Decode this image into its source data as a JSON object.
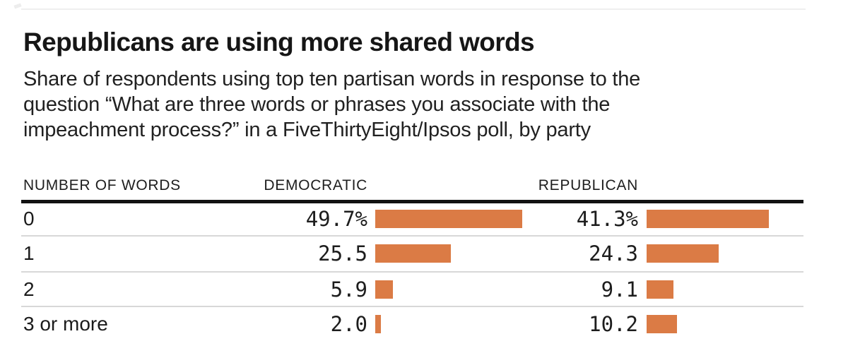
{
  "header": {
    "title": "Republicans are using more shared words",
    "subtitle_lines": [
      "Share of respondents using top ten partisan words in response to the",
      "question “What are three words or phrases you associate with the",
      "impeachment process?” in a FiveThirtyEight/Ipsos poll, by party"
    ],
    "subtitle_full": "Share of respondents using top ten partisan words in response to the question “What are three words or phrases you associate with the impeachment process?” in a FiveThirtyEight/Ipsos poll, by party"
  },
  "chart_data": {
    "type": "bar",
    "title": "Republicans are using more shared words",
    "category_axis_label": "NUMBER OF WORDS",
    "categories": [
      "0",
      "1",
      "2",
      "3 or more"
    ],
    "series": [
      {
        "name": "DEMOCRATIC",
        "values": [
          49.7,
          25.5,
          5.9,
          2.0
        ]
      },
      {
        "name": "REPUBLICAN",
        "values": [
          41.3,
          24.3,
          9.1,
          10.2
        ]
      }
    ],
    "columns": [
      "NUMBER OF WORDS",
      "DEMOCRATIC",
      "REPUBLICAN"
    ],
    "unit": "percent",
    "bar_color": "#db7b45",
    "grid": false,
    "legend_position": "column-headers",
    "rows": [
      {
        "label": "0",
        "democratic": 49.7,
        "democratic_label": "49.7%",
        "republican": 41.3,
        "republican_label": "41.3%"
      },
      {
        "label": "1",
        "democratic": 25.5,
        "democratic_label": "25.5",
        "republican": 24.3,
        "republican_label": "24.3"
      },
      {
        "label": "2",
        "democratic": 5.9,
        "democratic_label": "5.9",
        "republican": 9.1,
        "republican_label": "9.1"
      },
      {
        "label": "3 or more",
        "democratic": 2.0,
        "democratic_label": "2.0",
        "republican": 10.2,
        "republican_label": "10.2"
      }
    ]
  },
  "colors": {
    "bar": "#db7b45",
    "rule_heavy": "#121212",
    "rule_light": "#d8d8d8",
    "rule_top": "#efefef"
  }
}
